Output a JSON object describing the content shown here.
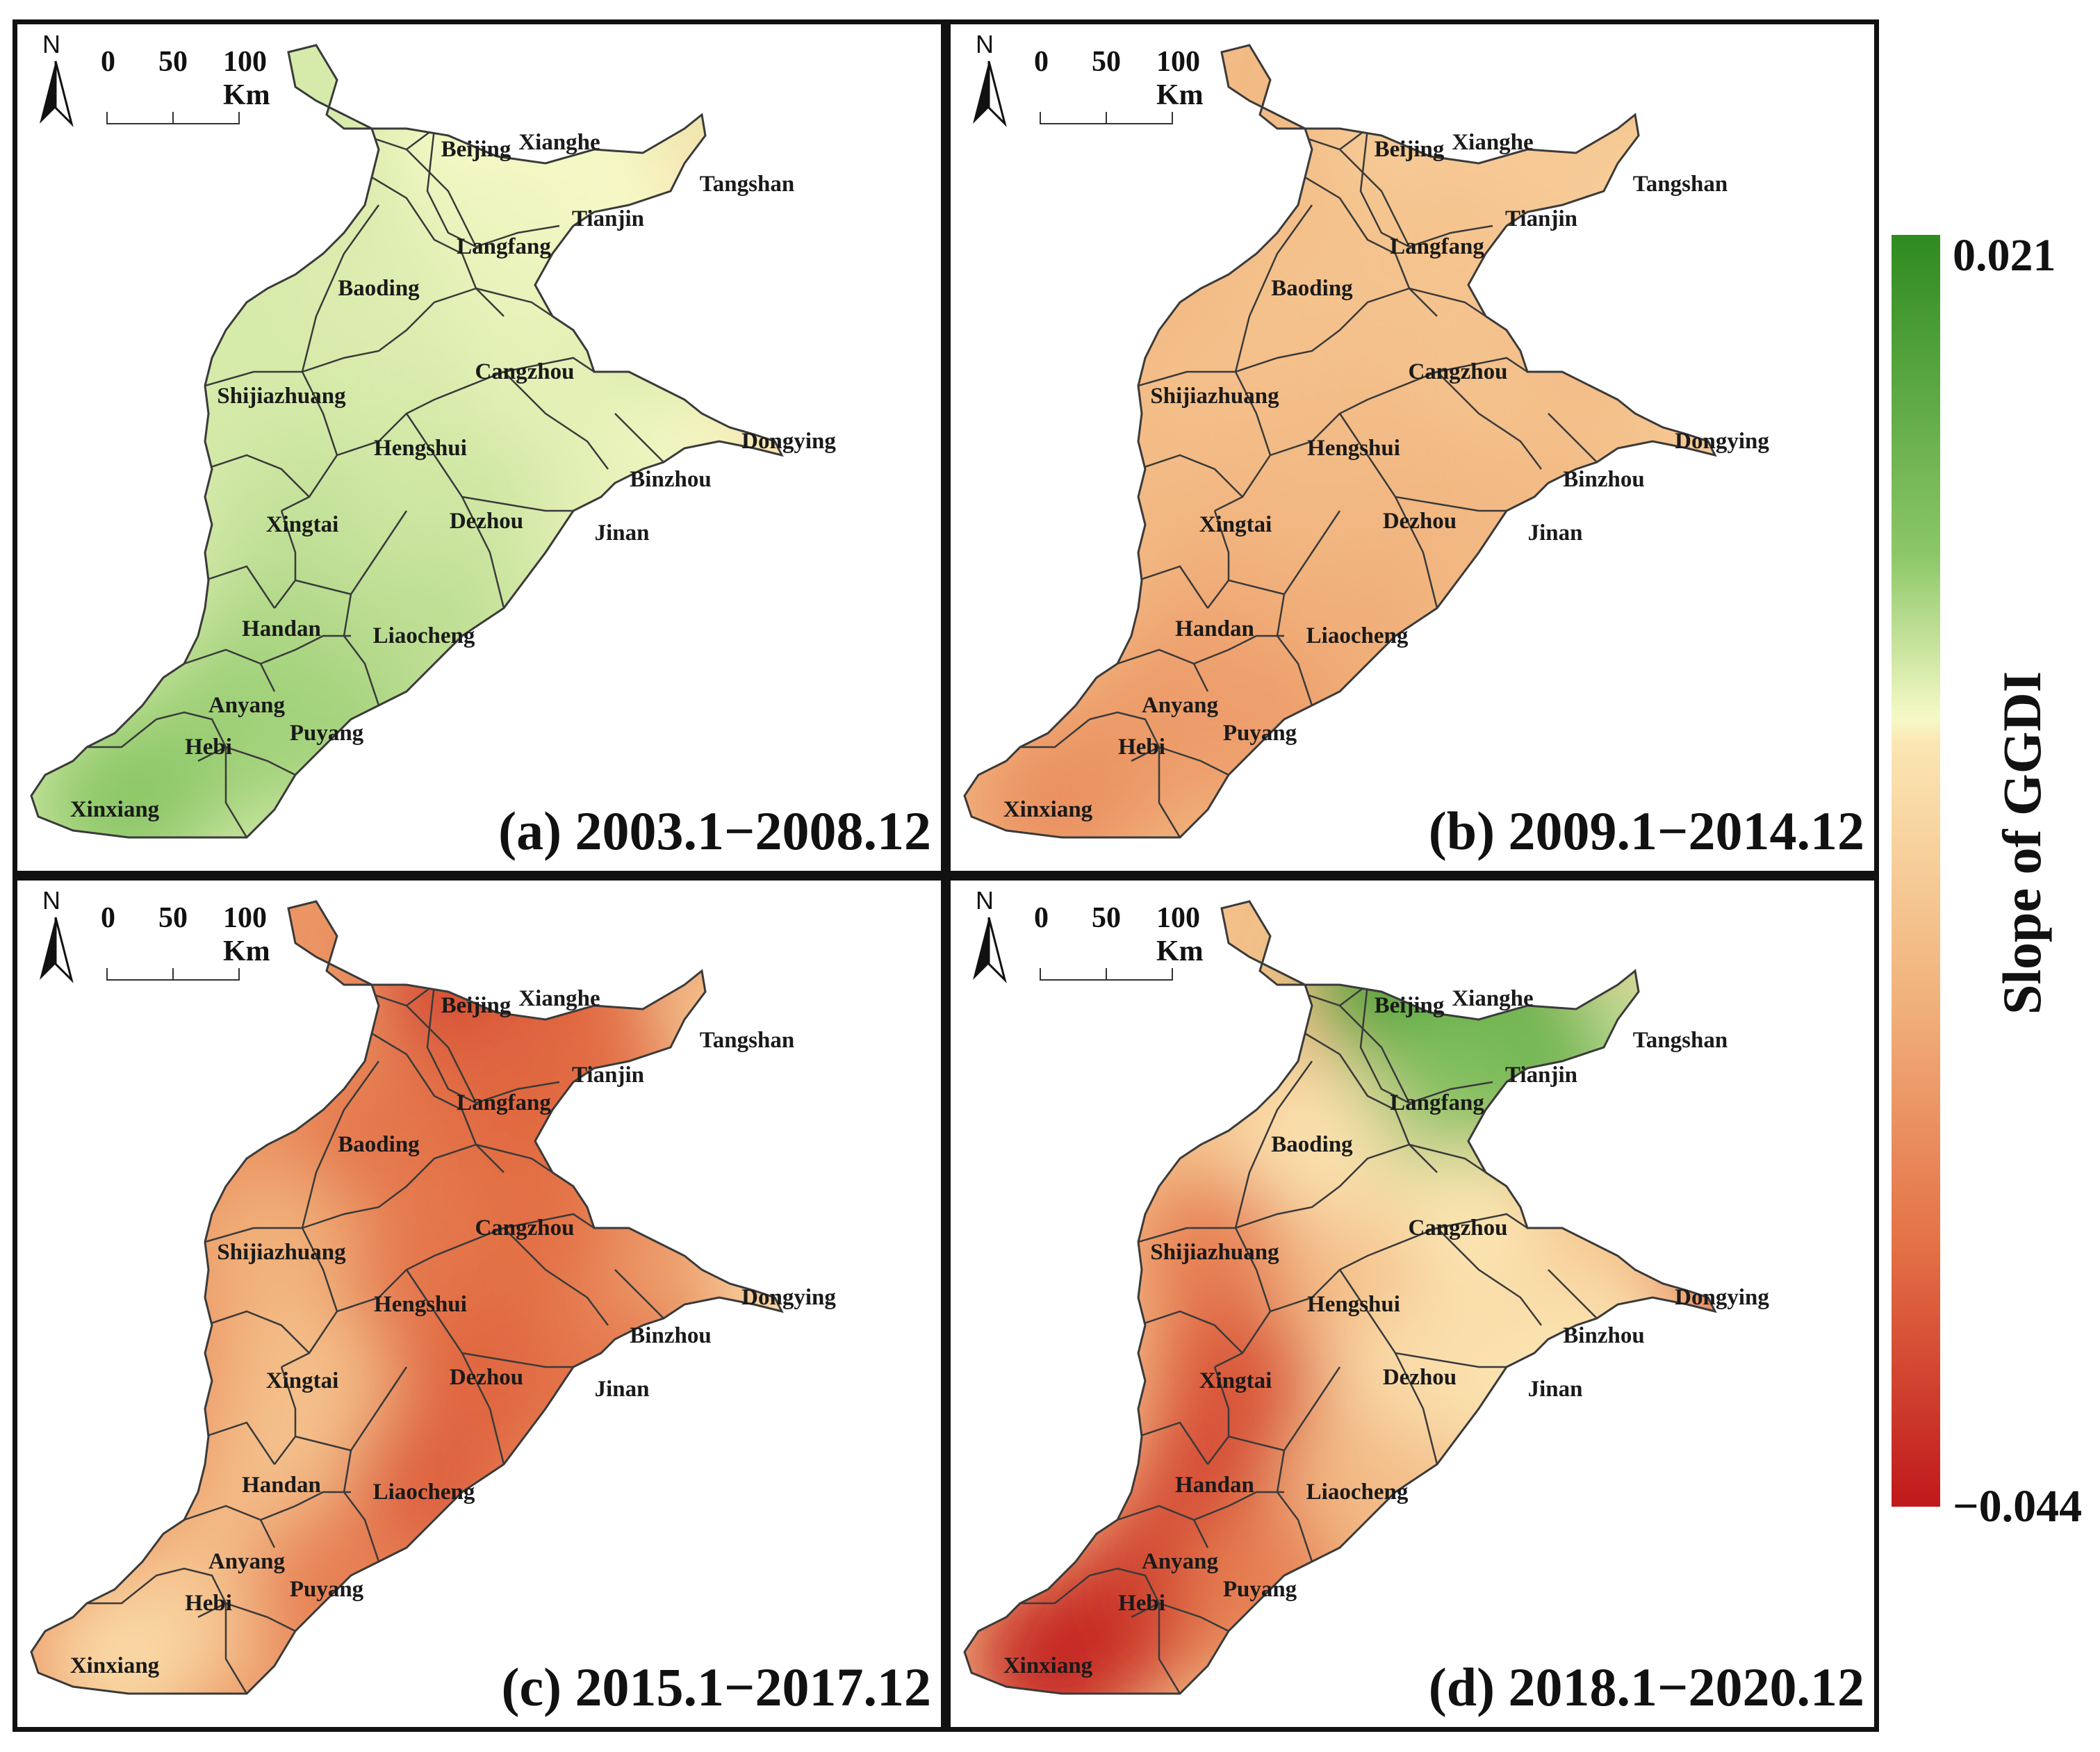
{
  "scale_bar": {
    "labels": [
      "0",
      "50",
      "100 Km"
    ]
  },
  "north_arrow": {
    "label": "N"
  },
  "legend": {
    "title": "Slope of GGDI",
    "max": "0.021",
    "min": "−0.044",
    "colors": {
      "high": "#2e8b1e",
      "mid": "#f6f9c7",
      "low": "#c0181b"
    }
  },
  "panels": [
    {
      "id": "a",
      "title": "(a) 2003.1−2008.12"
    },
    {
      "id": "b",
      "title": "(b) 2009.1−2014.12"
    },
    {
      "id": "c",
      "title": "(c) 2015.1−2017.12"
    },
    {
      "id": "d",
      "title": "(d) 2018.1−2020.12"
    }
  ],
  "places": [
    "Beijing",
    "Xianghe",
    "Tangshan",
    "Tianjin",
    "Langfang",
    "Baoding",
    "Cangzhou",
    "Shijiazhuang",
    "Hengshui",
    "Dongying",
    "Binzhou",
    "Xingtai",
    "Dezhou",
    "Jinan",
    "Handan",
    "Liaocheng",
    "Anyang",
    "Hebi",
    "Puyang",
    "Xinxiang"
  ],
  "region_values": {
    "a": {
      "Beijing": 0.62,
      "Xianghe": 0.62,
      "Tangshan": 0.58,
      "Tianjin": 0.62,
      "Langfang": 0.63,
      "Baoding": 0.65,
      "Cangzhou": 0.64,
      "Shijiazhuang": 0.66,
      "Hengshui": 0.66,
      "Dongying": 0.58,
      "Binzhou": 0.62,
      "Xingtai": 0.68,
      "Dezhou": 0.67,
      "Jinan": 0.64,
      "Handan": 0.7,
      "Liaocheng": 0.69,
      "Anyang": 0.72,
      "Hebi": 0.73,
      "Puyang": 0.72,
      "Xinxiang": 0.75
    },
    "b": {
      "Beijing": 0.5,
      "Xianghe": 0.5,
      "Tangshan": 0.51,
      "Tianjin": 0.49,
      "Langfang": 0.47,
      "Baoding": 0.46,
      "Cangzhou": 0.46,
      "Shijiazhuang": 0.45,
      "Hengshui": 0.44,
      "Dongying": 0.5,
      "Binzhou": 0.46,
      "Xingtai": 0.42,
      "Dezhou": 0.42,
      "Jinan": 0.43,
      "Handan": 0.38,
      "Liaocheng": 0.39,
      "Anyang": 0.34,
      "Hebi": 0.33,
      "Puyang": 0.34,
      "Xinxiang": 0.3
    },
    "c": {
      "Beijing": 0.1,
      "Xianghe": 0.15,
      "Tangshan": 0.5,
      "Tianjin": 0.2,
      "Langfang": 0.18,
      "Baoding": 0.22,
      "Cangzhou": 0.2,
      "Shijiazhuang": 0.4,
      "Hengshui": 0.22,
      "Dongying": 0.58,
      "Binzhou": 0.35,
      "Xingtai": 0.45,
      "Dezhou": 0.18,
      "Jinan": 0.22,
      "Handan": 0.46,
      "Liaocheng": 0.17,
      "Anyang": 0.44,
      "Hebi": 0.47,
      "Puyang": 0.25,
      "Xinxiang": 0.55
    },
    "d": {
      "Beijing": 0.92,
      "Xianghe": 0.86,
      "Tangshan": 0.68,
      "Tianjin": 0.82,
      "Langfang": 0.78,
      "Baoding": 0.58,
      "Cangzhou": 0.6,
      "Shijiazhuang": 0.25,
      "Hengshui": 0.45,
      "Dongying": 0.22,
      "Binzhou": 0.55,
      "Xingtai": 0.15,
      "Dezhou": 0.57,
      "Jinan": 0.6,
      "Handan": 0.12,
      "Liaocheng": 0.44,
      "Anyang": 0.1,
      "Hebi": 0.08,
      "Puyang": 0.25,
      "Xinxiang": 0.03
    }
  }
}
